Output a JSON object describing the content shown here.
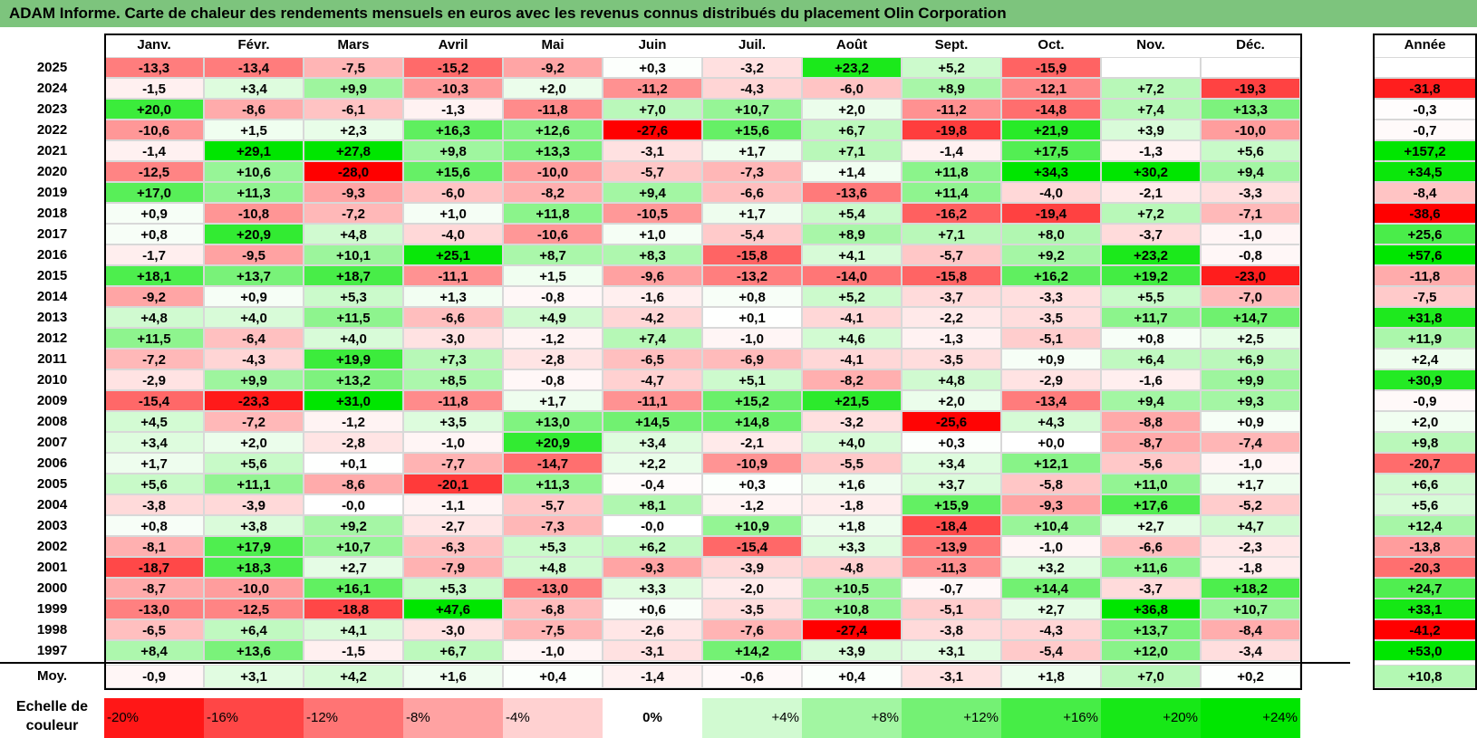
{
  "title": "ADAM Informe. Carte de chaleur des rendements mensuels en euros avec les revenus connus distribués du placement Olin Corporation",
  "months": [
    "Janv.",
    "Févr.",
    "Mars",
    "Avril",
    "Mai",
    "Juin",
    "Juil.",
    "Août",
    "Sept.",
    "Oct.",
    "Nov.",
    "Déc."
  ],
  "annual_header": "Année",
  "avg_label": "Moy.",
  "scale_label": "Echelle de couleur",
  "scale_steps": [
    "-20%",
    "-16%",
    "-12%",
    "-8%",
    "-4%",
    "0%",
    "+4%",
    "+8%",
    "+12%",
    "+16%",
    "+20%",
    "+24%"
  ],
  "colors": {
    "negative": "#ff0000",
    "positive": "#00e600",
    "neutral": "#ffffff",
    "title_bg": "#7dc47d"
  },
  "chart_data": {
    "type": "heatmap",
    "title": "ADAM Informe. Carte de chaleur des rendements mensuels en euros avec les revenus connus distribués du placement Olin Corporation",
    "columns": [
      "Janv.",
      "Févr.",
      "Mars",
      "Avril",
      "Mai",
      "Juin",
      "Juil.",
      "Août",
      "Sept.",
      "Oct.",
      "Nov.",
      "Déc."
    ],
    "rows": [
      {
        "year": "2025",
        "values": [
          "-13,3",
          "-13,4",
          "-7,5",
          "-15,2",
          "-9,2",
          "+0,3",
          "-3,2",
          "+23,2",
          "+5,2",
          "-15,9",
          "",
          ""
        ],
        "annual": ""
      },
      {
        "year": "2024",
        "values": [
          "-1,5",
          "+3,4",
          "+9,9",
          "-10,3",
          "+2,0",
          "-11,2",
          "-4,3",
          "-6,0",
          "+8,9",
          "-12,1",
          "+7,2",
          "-19,3"
        ],
        "annual": "-31,8"
      },
      {
        "year": "2023",
        "values": [
          "+20,0",
          "-8,6",
          "-6,1",
          "-1,3",
          "-11,8",
          "+7,0",
          "+10,7",
          "+2,0",
          "-11,2",
          "-14,8",
          "+7,4",
          "+13,3"
        ],
        "annual": "-0,3"
      },
      {
        "year": "2022",
        "values": [
          "-10,6",
          "+1,5",
          "+2,3",
          "+16,3",
          "+12,6",
          "-27,6",
          "+15,6",
          "+6,7",
          "-19,8",
          "+21,9",
          "+3,9",
          "-10,0"
        ],
        "annual": "-0,7"
      },
      {
        "year": "2021",
        "values": [
          "-1,4",
          "+29,1",
          "+27,8",
          "+9,8",
          "+13,3",
          "-3,1",
          "+1,7",
          "+7,1",
          "-1,4",
          "+17,5",
          "-1,3",
          "+5,6"
        ],
        "annual": "+157,2"
      },
      {
        "year": "2020",
        "values": [
          "-12,5",
          "+10,6",
          "-28,0",
          "+15,6",
          "-10,0",
          "-5,7",
          "-7,3",
          "+1,4",
          "+11,8",
          "+34,3",
          "+30,2",
          "+9,4"
        ],
        "annual": "+34,5"
      },
      {
        "year": "2019",
        "values": [
          "+17,0",
          "+11,3",
          "-9,3",
          "-6,0",
          "-8,2",
          "+9,4",
          "-6,6",
          "-13,6",
          "+11,4",
          "-4,0",
          "-2,1",
          "-3,3"
        ],
        "annual": "-8,4"
      },
      {
        "year": "2018",
        "values": [
          "+0,9",
          "-10,8",
          "-7,2",
          "+1,0",
          "+11,8",
          "-10,5",
          "+1,7",
          "+5,4",
          "-16,2",
          "-19,4",
          "+7,2",
          "-7,1"
        ],
        "annual": "-38,6"
      },
      {
        "year": "2017",
        "values": [
          "+0,8",
          "+20,9",
          "+4,8",
          "-4,0",
          "-10,6",
          "+1,0",
          "-5,4",
          "+8,9",
          "+7,1",
          "+8,0",
          "-3,7",
          "-1,0"
        ],
        "annual": "+25,6"
      },
      {
        "year": "2016",
        "values": [
          "-1,7",
          "-9,5",
          "+10,1",
          "+25,1",
          "+8,7",
          "+8,3",
          "-15,8",
          "+4,1",
          "-5,7",
          "+9,2",
          "+23,2",
          "-0,8"
        ],
        "annual": "+57,6"
      },
      {
        "year": "2015",
        "values": [
          "+18,1",
          "+13,7",
          "+18,7",
          "-11,1",
          "+1,5",
          "-9,6",
          "-13,2",
          "-14,0",
          "-15,8",
          "+16,2",
          "+19,2",
          "-23,0"
        ],
        "annual": "-11,8"
      },
      {
        "year": "2014",
        "values": [
          "-9,2",
          "+0,9",
          "+5,3",
          "+1,3",
          "-0,8",
          "-1,6",
          "+0,8",
          "+5,2",
          "-3,7",
          "-3,3",
          "+5,5",
          "-7,0"
        ],
        "annual": "-7,5"
      },
      {
        "year": "2013",
        "values": [
          "+4,8",
          "+4,0",
          "+11,5",
          "-6,6",
          "+4,9",
          "-4,2",
          "+0,1",
          "-4,1",
          "-2,2",
          "-3,5",
          "+11,7",
          "+14,7"
        ],
        "annual": "+31,8"
      },
      {
        "year": "2012",
        "values": [
          "+11,5",
          "-6,4",
          "+4,0",
          "-3,0",
          "-1,2",
          "+7,4",
          "-1,0",
          "+4,6",
          "-1,3",
          "-5,1",
          "+0,8",
          "+2,5"
        ],
        "annual": "+11,9"
      },
      {
        "year": "2011",
        "values": [
          "-7,2",
          "-4,3",
          "+19,9",
          "+7,3",
          "-2,8",
          "-6,5",
          "-6,9",
          "-4,1",
          "-3,5",
          "+0,9",
          "+6,4",
          "+6,9"
        ],
        "annual": "+2,4"
      },
      {
        "year": "2010",
        "values": [
          "-2,9",
          "+9,9",
          "+13,2",
          "+8,5",
          "-0,8",
          "-4,7",
          "+5,1",
          "-8,2",
          "+4,8",
          "-2,9",
          "-1,6",
          "+9,9"
        ],
        "annual": "+30,9"
      },
      {
        "year": "2009",
        "values": [
          "-15,4",
          "-23,3",
          "+31,0",
          "-11,8",
          "+1,7",
          "-11,1",
          "+15,2",
          "+21,5",
          "+2,0",
          "-13,4",
          "+9,4",
          "+9,3"
        ],
        "annual": "-0,9"
      },
      {
        "year": "2008",
        "values": [
          "+4,5",
          "-7,2",
          "-1,2",
          "+3,5",
          "+13,0",
          "+14,5",
          "+14,8",
          "-3,2",
          "-25,6",
          "+4,3",
          "-8,8",
          "+0,9"
        ],
        "annual": "+2,0"
      },
      {
        "year": "2007",
        "values": [
          "+3,4",
          "+2,0",
          "-2,8",
          "-1,0",
          "+20,9",
          "+3,4",
          "-2,1",
          "+4,0",
          "+0,3",
          "+0,0",
          "-8,7",
          "-7,4"
        ],
        "annual": "+9,8"
      },
      {
        "year": "2006",
        "values": [
          "+1,7",
          "+5,6",
          "+0,1",
          "-7,7",
          "-14,7",
          "+2,2",
          "-10,9",
          "-5,5",
          "+3,4",
          "+12,1",
          "-5,6",
          "-1,0"
        ],
        "annual": "-20,7"
      },
      {
        "year": "2005",
        "values": [
          "+5,6",
          "+11,1",
          "-8,6",
          "-20,1",
          "+11,3",
          "-0,4",
          "+0,3",
          "+1,6",
          "+3,7",
          "-5,8",
          "+11,0",
          "+1,7"
        ],
        "annual": "+6,6"
      },
      {
        "year": "2004",
        "values": [
          "-3,8",
          "-3,9",
          "-0,0",
          "-1,1",
          "-5,7",
          "+8,1",
          "-1,2",
          "-1,8",
          "+15,9",
          "-9,3",
          "+17,6",
          "-5,2"
        ],
        "annual": "+5,6"
      },
      {
        "year": "2003",
        "values": [
          "+0,8",
          "+3,8",
          "+9,2",
          "-2,7",
          "-7,3",
          "-0,0",
          "+10,9",
          "+1,8",
          "-18,4",
          "+10,4",
          "+2,7",
          "+4,7"
        ],
        "annual": "+12,4"
      },
      {
        "year": "2002",
        "values": [
          "-8,1",
          "+17,9",
          "+10,7",
          "-6,3",
          "+5,3",
          "+6,2",
          "-15,4",
          "+3,3",
          "-13,9",
          "-1,0",
          "-6,6",
          "-2,3"
        ],
        "annual": "-13,8"
      },
      {
        "year": "2001",
        "values": [
          "-18,7",
          "+18,3",
          "+2,7",
          "-7,9",
          "+4,8",
          "-9,3",
          "-3,9",
          "-4,8",
          "-11,3",
          "+3,2",
          "+11,6",
          "-1,8"
        ],
        "annual": "-20,3"
      },
      {
        "year": "2000",
        "values": [
          "-8,7",
          "-10,0",
          "+16,1",
          "+5,3",
          "-13,0",
          "+3,3",
          "-2,0",
          "+10,5",
          "-0,7",
          "+14,4",
          "-3,7",
          "+18,2"
        ],
        "annual": "+24,7"
      },
      {
        "year": "1999",
        "values": [
          "-13,0",
          "-12,5",
          "-18,8",
          "+47,6",
          "-6,8",
          "+0,6",
          "-3,5",
          "+10,8",
          "-5,1",
          "+2,7",
          "+36,8",
          "+10,7"
        ],
        "annual": "+33,1"
      },
      {
        "year": "1998",
        "values": [
          "-6,5",
          "+6,4",
          "+4,1",
          "-3,0",
          "-7,5",
          "-2,6",
          "-7,6",
          "-27,4",
          "-3,8",
          "-4,3",
          "+13,7",
          "-8,4"
        ],
        "annual": "-41,2"
      },
      {
        "year": "1997",
        "values": [
          "+8,4",
          "+13,6",
          "-1,5",
          "+6,7",
          "-1,0",
          "-3,1",
          "+14,2",
          "+3,9",
          "+3,1",
          "-5,4",
          "+12,0",
          "-3,4"
        ],
        "annual": "+53,0"
      }
    ],
    "average": {
      "values": [
        "-0,9",
        "+3,1",
        "+4,2",
        "+1,6",
        "+0,4",
        "-1,4",
        "-0,6",
        "+0,4",
        "-3,1",
        "+1,8",
        "+7,0",
        "+0,2"
      ],
      "annual": "+10,8"
    }
  }
}
